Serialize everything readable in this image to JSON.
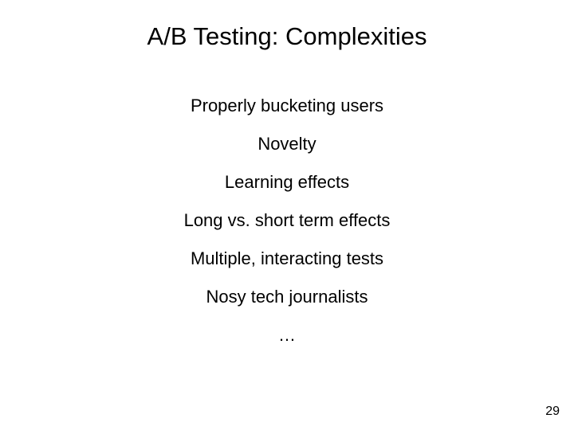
{
  "slide": {
    "title": "A/B Testing: Complexities",
    "items": [
      "Properly bucketing users",
      "Novelty",
      "Learning effects",
      "Long vs. short term effects",
      "Multiple, interacting tests",
      "Nosy tech journalists",
      "…"
    ],
    "page_number": "29"
  },
  "style": {
    "background_color": "#ffffff",
    "text_color": "#000000",
    "title_fontsize": 31,
    "item_fontsize": 22,
    "pagenum_fontsize": 16,
    "font_family": "Arial, Helvetica, sans-serif"
  }
}
